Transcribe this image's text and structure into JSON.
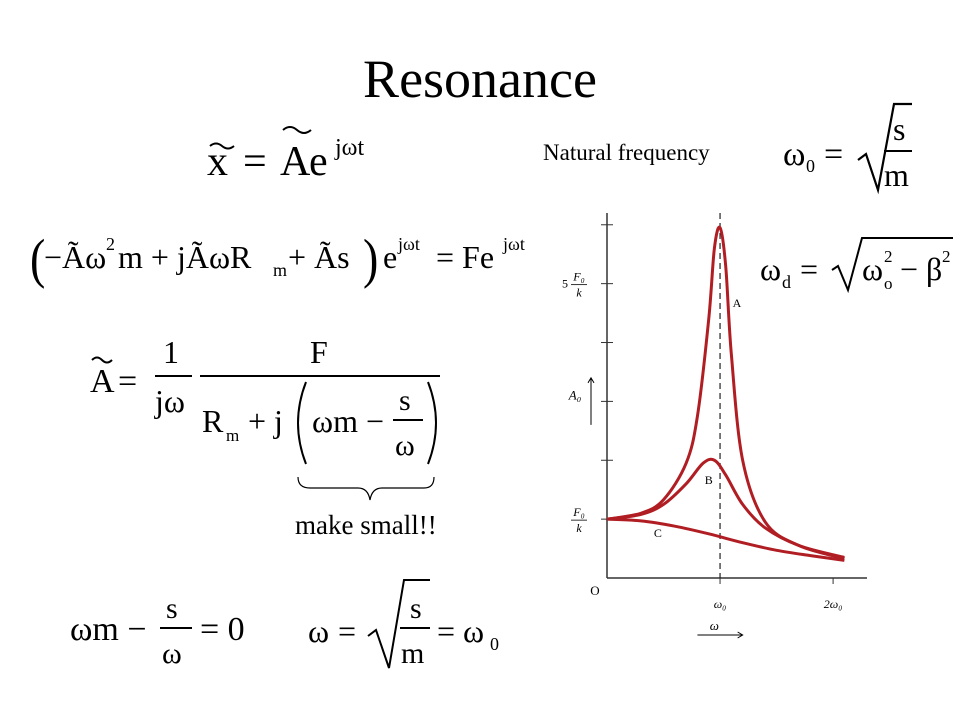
{
  "title": "Resonance",
  "natural_frequency_label": "Natural frequency",
  "make_small_note": "make small!!",
  "equations": {
    "eq1": {
      "x": "x",
      "equals": "=",
      "A": "A",
      "e": "e",
      "exp": "jωt"
    },
    "omega0_def": {
      "omega": "ω",
      "sub": "0",
      "equals": "=",
      "num": "s",
      "den": "m"
    },
    "eq2": {
      "lhs_open": "(",
      "t1": "−Ãω",
      "sq": "2",
      "t1b": "m + jÃωR",
      "sub_m": "m",
      "t2": " + Ãs",
      "lhs_close": ")",
      "e": "e",
      "exp": "jωt",
      "rhs": "= Fe",
      "rhs_exp": "jωt"
    },
    "omegad_def": {
      "omega": "ω",
      "sub": "d",
      "equals": "=",
      "rad_omega": "ω",
      "rad_sup": "2",
      "rad_sub": "o",
      "minus_beta": "− β",
      "beta_sup": "2"
    },
    "amplitude": {
      "A": "A",
      "equals": "=",
      "one": "1",
      "jw": "jω",
      "F": "F",
      "Rm": "R",
      "sub_m": "m",
      "plus_j": "+ j",
      "wm": "ωm −",
      "s": "s",
      "w": "ω"
    },
    "condition": {
      "wm": "ωm −",
      "s": "s",
      "w": "ω",
      "rhs": "= 0"
    },
    "result": {
      "omega": "ω",
      "equals": "=",
      "s": "s",
      "m": "m",
      "eq2": "= ω",
      "sub": "0"
    }
  },
  "chart_data": {
    "type": "line",
    "title": "",
    "xlabel": "ω",
    "ylabel": "A₀",
    "x_ticks": [
      "O",
      "ω₀",
      "2ω₀"
    ],
    "y_ticks": [
      "F₀/k",
      "5 F₀/k"
    ],
    "x_units": "multiples of ω₀",
    "y_units": "multiples of F₀/k",
    "xlim": [
      0,
      2.3
    ],
    "ylim": [
      0,
      6.2
    ],
    "dashed_line_at_x": 1.0,
    "line_color": "#b01e23",
    "series": [
      {
        "name": "A",
        "x": [
          0,
          0.3,
          0.5,
          0.7,
          0.8,
          0.9,
          0.95,
          1.0,
          1.05,
          1.1,
          1.2,
          1.4,
          1.7,
          2.1
        ],
        "y": [
          1.0,
          1.1,
          1.33,
          1.95,
          2.75,
          4.4,
          5.6,
          5.95,
          5.3,
          3.8,
          2.0,
          0.95,
          0.55,
          0.33
        ]
      },
      {
        "name": "B",
        "x": [
          0,
          0.3,
          0.5,
          0.7,
          0.85,
          0.95,
          1.05,
          1.2,
          1.4,
          1.7,
          2.1
        ],
        "y": [
          1.0,
          1.08,
          1.25,
          1.6,
          1.95,
          2.0,
          1.75,
          1.25,
          0.85,
          0.55,
          0.35
        ]
      },
      {
        "name": "C",
        "x": [
          0,
          0.3,
          0.6,
          0.9,
          1.2,
          1.5,
          1.8,
          2.1
        ],
        "y": [
          1.0,
          0.97,
          0.88,
          0.75,
          0.6,
          0.47,
          0.38,
          0.3
        ]
      }
    ]
  }
}
